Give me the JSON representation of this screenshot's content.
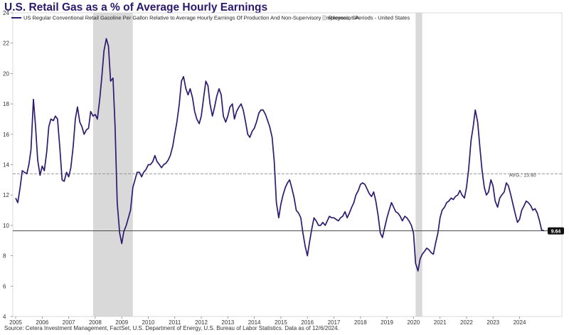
{
  "chart_data": {
    "type": "line",
    "title": "U.S. Retail Gas as a % of Average Hourly Earnings",
    "source": "Source: Cetera Investment Management, FactSet, U.S. Department of Energy, U.S. Bureau of Labor Statistics. Data as of 12/6/2024.",
    "xlabel": "",
    "ylabel": "",
    "xlim": [
      2005,
      2025.3
    ],
    "ylim": [
      4,
      24
    ],
    "x_ticks": [
      "2005",
      "2006",
      "2007",
      "2008",
      "2009",
      "2010",
      "2011",
      "2012",
      "2013",
      "2014",
      "2015",
      "2016",
      "2017",
      "2018",
      "2019",
      "2020",
      "2021",
      "2022",
      "2023",
      "2024"
    ],
    "y_ticks": [
      "4",
      "6",
      "8",
      "10",
      "12",
      "14",
      "16",
      "18",
      "20",
      "22",
      "24"
    ],
    "grid": false,
    "legend_position": "top-left",
    "colors": {
      "series": "#2e1a6e",
      "recession": "#d9d9d9",
      "average_line": "#888888",
      "last_value_bg": "#111111",
      "title": "#2b1a6b"
    },
    "series": [
      {
        "name": "US Regular Conventional Retail Gasoline Per Gallon Relative to Average Hourly Earnings Of Production And Non-Supervisory Employees, SA",
        "x": [
          2005.0,
          2005.08,
          2005.17,
          2005.25,
          2005.33,
          2005.42,
          2005.5,
          2005.58,
          2005.67,
          2005.75,
          2005.83,
          2005.92,
          2006.0,
          2006.08,
          2006.17,
          2006.25,
          2006.33,
          2006.42,
          2006.5,
          2006.58,
          2006.67,
          2006.75,
          2006.83,
          2006.92,
          2007.0,
          2007.08,
          2007.17,
          2007.25,
          2007.33,
          2007.42,
          2007.5,
          2007.58,
          2007.67,
          2007.75,
          2007.83,
          2007.92,
          2008.0,
          2008.08,
          2008.17,
          2008.25,
          2008.33,
          2008.42,
          2008.5,
          2008.58,
          2008.67,
          2008.75,
          2008.83,
          2008.92,
          2009.0,
          2009.08,
          2009.17,
          2009.25,
          2009.33,
          2009.42,
          2009.5,
          2009.58,
          2009.67,
          2009.75,
          2009.83,
          2009.92,
          2010.0,
          2010.08,
          2010.17,
          2010.25,
          2010.33,
          2010.42,
          2010.5,
          2010.58,
          2010.67,
          2010.75,
          2010.83,
          2010.92,
          2011.0,
          2011.08,
          2011.17,
          2011.25,
          2011.33,
          2011.42,
          2011.5,
          2011.58,
          2011.67,
          2011.75,
          2011.83,
          2011.92,
          2012.0,
          2012.08,
          2012.17,
          2012.25,
          2012.33,
          2012.42,
          2012.5,
          2012.58,
          2012.67,
          2012.75,
          2012.83,
          2012.92,
          2013.0,
          2013.08,
          2013.17,
          2013.25,
          2013.33,
          2013.42,
          2013.5,
          2013.58,
          2013.67,
          2013.75,
          2013.83,
          2013.92,
          2014.0,
          2014.08,
          2014.17,
          2014.25,
          2014.33,
          2014.42,
          2014.5,
          2014.58,
          2014.67,
          2014.75,
          2014.83,
          2014.92,
          2015.0,
          2015.08,
          2015.17,
          2015.25,
          2015.33,
          2015.42,
          2015.5,
          2015.58,
          2015.67,
          2015.75,
          2015.83,
          2015.92,
          2016.0,
          2016.08,
          2016.17,
          2016.25,
          2016.33,
          2016.42,
          2016.5,
          2016.58,
          2016.67,
          2016.75,
          2016.83,
          2016.92,
          2017.0,
          2017.08,
          2017.17,
          2017.25,
          2017.33,
          2017.42,
          2017.5,
          2017.58,
          2017.67,
          2017.75,
          2017.83,
          2017.92,
          2018.0,
          2018.08,
          2018.17,
          2018.25,
          2018.33,
          2018.42,
          2018.5,
          2018.58,
          2018.67,
          2018.75,
          2018.83,
          2018.92,
          2019.0,
          2019.08,
          2019.17,
          2019.25,
          2019.33,
          2019.42,
          2019.5,
          2019.58,
          2019.67,
          2019.75,
          2019.83,
          2019.92,
          2020.0,
          2020.08,
          2020.17,
          2020.25,
          2020.33,
          2020.42,
          2020.5,
          2020.58,
          2020.67,
          2020.75,
          2020.83,
          2020.92,
          2021.0,
          2021.08,
          2021.17,
          2021.25,
          2021.33,
          2021.42,
          2021.5,
          2021.58,
          2021.67,
          2021.75,
          2021.83,
          2021.92,
          2022.0,
          2022.08,
          2022.17,
          2022.25,
          2022.33,
          2022.42,
          2022.5,
          2022.58,
          2022.67,
          2022.75,
          2022.83,
          2022.92,
          2023.0,
          2023.08,
          2023.17,
          2023.25,
          2023.33,
          2023.42,
          2023.5,
          2023.58,
          2023.67,
          2023.75,
          2023.83,
          2023.92,
          2024.0,
          2024.08,
          2024.17,
          2024.25,
          2024.33,
          2024.42,
          2024.5,
          2024.58,
          2024.67,
          2024.75,
          2024.83,
          2024.92
        ],
        "values": [
          11.8,
          11.5,
          12.5,
          13.6,
          13.5,
          13.4,
          14.0,
          15.0,
          18.3,
          16.5,
          14.3,
          13.3,
          13.9,
          13.6,
          14.8,
          16.5,
          17.0,
          16.9,
          17.2,
          17.0,
          15.0,
          13.0,
          12.9,
          13.5,
          13.2,
          13.8,
          15.2,
          17.0,
          17.8,
          16.8,
          16.5,
          16.0,
          16.3,
          16.4,
          17.5,
          17.2,
          17.3,
          17.0,
          18.3,
          19.8,
          21.5,
          22.3,
          21.8,
          19.5,
          19.7,
          16.5,
          11.5,
          9.5,
          8.8,
          9.6,
          10.0,
          10.5,
          11.0,
          12.5,
          13.0,
          13.5,
          13.5,
          13.2,
          13.5,
          13.7,
          14.0,
          14.0,
          14.2,
          14.6,
          14.2,
          14.0,
          13.8,
          14.0,
          14.1,
          14.3,
          14.6,
          15.2,
          16.0,
          16.8,
          18.0,
          19.5,
          19.8,
          19.0,
          18.6,
          19.0,
          18.4,
          17.5,
          17.0,
          16.7,
          17.2,
          18.3,
          19.5,
          19.2,
          18.0,
          17.2,
          17.8,
          18.5,
          19.0,
          18.6,
          17.2,
          16.8,
          17.2,
          17.8,
          18.0,
          17.0,
          17.5,
          17.8,
          18.0,
          17.6,
          16.8,
          16.0,
          15.8,
          16.2,
          16.4,
          16.8,
          17.4,
          17.6,
          17.6,
          17.3,
          16.9,
          16.5,
          15.8,
          14.2,
          11.5,
          10.5,
          11.4,
          12.0,
          12.5,
          12.8,
          13.0,
          12.4,
          11.8,
          11.0,
          10.8,
          10.5,
          9.5,
          8.6,
          8.0,
          8.9,
          9.8,
          10.5,
          10.3,
          10.0,
          10.0,
          10.2,
          10.0,
          10.3,
          10.6,
          10.5,
          10.5,
          10.4,
          10.3,
          10.5,
          10.6,
          10.9,
          10.5,
          10.8,
          11.2,
          11.5,
          12.0,
          12.3,
          12.7,
          12.8,
          12.7,
          12.4,
          12.1,
          11.9,
          12.2,
          11.6,
          10.6,
          9.5,
          9.2,
          9.9,
          10.5,
          11.0,
          11.5,
          11.2,
          10.9,
          10.8,
          10.6,
          10.3,
          10.6,
          10.5,
          10.3,
          10.0,
          9.5,
          7.5,
          7.0,
          7.8,
          8.1,
          8.3,
          8.5,
          8.4,
          8.2,
          8.1,
          8.8,
          9.5,
          10.5,
          11.0,
          11.2,
          11.5,
          11.6,
          11.8,
          11.7,
          11.9,
          12.0,
          12.3,
          12.0,
          11.8,
          12.5,
          13.7,
          15.6,
          16.5,
          17.6,
          16.8,
          15.2,
          13.7,
          12.5,
          12.0,
          12.2,
          13.0,
          12.6,
          11.6,
          11.2,
          11.8,
          12.0,
          12.2,
          12.8,
          12.6,
          12.0,
          11.4,
          10.8,
          10.2,
          10.4,
          11.0,
          11.3,
          11.6,
          11.5,
          11.3,
          11.0,
          11.1,
          10.8,
          10.3,
          9.7,
          9.64
        ],
        "last_value": "9.64"
      }
    ],
    "average": {
      "label": "AVG.: 13.40",
      "value": 13.4
    },
    "recessions": {
      "name": "Recession Periods - United States",
      "periods": [
        [
          2007.92,
          2009.42
        ],
        [
          2020.08,
          2020.33
        ]
      ]
    }
  }
}
